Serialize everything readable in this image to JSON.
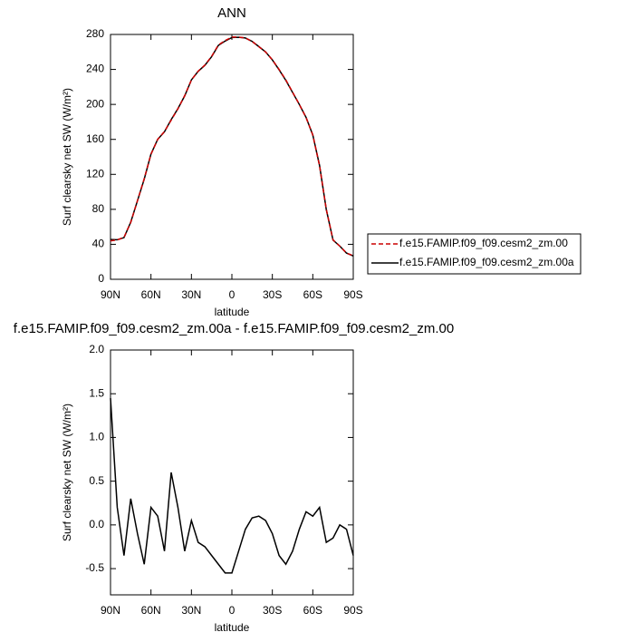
{
  "chart_data": [
    {
      "type": "line",
      "title": "ANN",
      "xlabel": "latitude",
      "ylabel": "Surf clearsky net SW (W/m²)",
      "x": [
        90,
        85,
        80,
        75,
        70,
        65,
        60,
        55,
        50,
        45,
        40,
        35,
        30,
        25,
        20,
        15,
        10,
        5,
        0,
        -5,
        -10,
        -15,
        -20,
        -25,
        -30,
        -35,
        -40,
        -45,
        -50,
        -55,
        -60,
        -65,
        -70,
        -75,
        -80,
        -85,
        -90
      ],
      "xlim": [
        90,
        -90
      ],
      "xticks": [
        {
          "value": 90,
          "label": "90N"
        },
        {
          "value": 60,
          "label": "60N"
        },
        {
          "value": 30,
          "label": "30N"
        },
        0,
        {
          "value": -30,
          "label": "30S"
        },
        {
          "value": -60,
          "label": "60S"
        },
        {
          "value": -90,
          "label": "90S"
        }
      ],
      "ylim": [
        0,
        280
      ],
      "yticks": [
        0,
        40,
        80,
        120,
        160,
        200,
        240,
        280
      ],
      "legend": "right",
      "series": [
        {
          "name": "f.e15.FAMIP.f09_f09.cesm2_zm.00",
          "color": "#cc0000",
          "line_style": "dashed",
          "values": [
            44,
            45,
            48,
            65,
            90,
            115,
            143,
            160,
            169,
            182,
            195,
            210,
            228,
            238,
            245,
            255,
            268,
            273,
            277,
            277,
            276,
            272,
            266,
            260,
            251,
            240,
            228,
            214,
            200,
            185,
            165,
            130,
            80,
            45,
            38,
            30,
            27
          ]
        },
        {
          "name": "f.e15.FAMIP.f09_f09.cesm2_zm.00a",
          "color": "#000000",
          "line_style": "solid",
          "values": [
            45.45,
            45.2,
            47.65,
            65.3,
            89.9,
            114.55,
            143.2,
            160.1,
            168.7,
            182.6,
            195.2,
            209.7,
            228.05,
            237.8,
            244.75,
            254.65,
            267.55,
            272.45,
            276.45,
            276.7,
            275.95,
            272.08,
            266.1,
            260.05,
            250.9,
            239.65,
            227.55,
            213.7,
            199.95,
            185.15,
            165.1,
            130.2,
            79.8,
            44.85,
            38,
            29.95,
            26.65
          ]
        }
      ]
    },
    {
      "type": "line",
      "title": "f.e15.FAMIP.f09_f09.cesm2_zm.00a - f.e15.FAMIP.f09_f09.cesm2_zm.00",
      "xlabel": "latitude",
      "ylabel": "Surf clearsky net SW (W/m²)",
      "x": [
        90,
        85,
        80,
        75,
        70,
        65,
        60,
        55,
        50,
        45,
        40,
        35,
        30,
        25,
        20,
        15,
        10,
        5,
        0,
        -5,
        -10,
        -15,
        -20,
        -25,
        -30,
        -35,
        -40,
        -45,
        -50,
        -55,
        -60,
        -65,
        -70,
        -75,
        -80,
        -85,
        -90
      ],
      "xlim": [
        90,
        -90
      ],
      "xticks": [
        {
          "value": 90,
          "label": "90N"
        },
        {
          "value": 60,
          "label": "60N"
        },
        {
          "value": 30,
          "label": "30N"
        },
        0,
        {
          "value": -30,
          "label": "30S"
        },
        {
          "value": -60,
          "label": "60S"
        },
        {
          "value": -90,
          "label": "90S"
        }
      ],
      "ylim": [
        -0.8,
        2.0
      ],
      "yticks": [
        {
          "value": 2.0,
          "label": "2.0"
        },
        {
          "value": 1.5,
          "label": "1.5"
        },
        {
          "value": 1.0,
          "label": "1.0"
        },
        {
          "value": 0.5,
          "label": "0.5"
        },
        {
          "value": 0.0,
          "label": "0.0"
        },
        {
          "value": -0.5,
          "label": "-0.5"
        }
      ],
      "color": "#000000",
      "values": [
        1.45,
        0.2,
        -0.35,
        0.3,
        -0.1,
        -0.45,
        0.2,
        0.1,
        -0.3,
        0.6,
        0.2,
        -0.3,
        0.05,
        -0.2,
        -0.25,
        -0.35,
        -0.45,
        -0.55,
        -0.55,
        -0.3,
        -0.05,
        0.08,
        0.1,
        0.05,
        -0.1,
        -0.35,
        -0.45,
        -0.3,
        -0.05,
        0.15,
        0.1,
        0.2,
        -0.2,
        -0.15,
        0.0,
        -0.05,
        -0.35
      ]
    }
  ]
}
